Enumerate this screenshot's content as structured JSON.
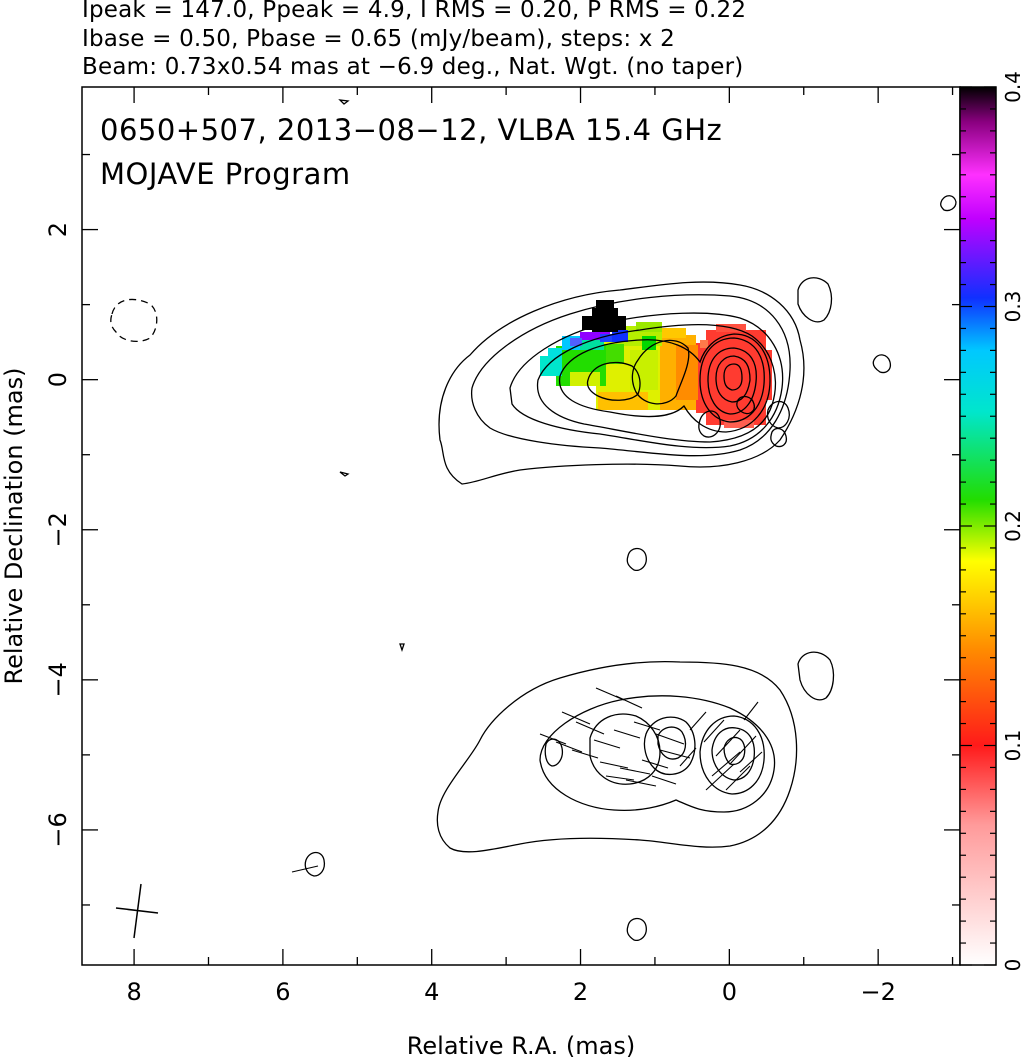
{
  "header": {
    "line1": "Ipeak = 147.0, Ppeak = 4.9, I RMS = 0.20, P RMS = 0.22",
    "line2": "Ibase = 0.50, Pbase = 0.65 (mJy/beam), steps: x 2",
    "line3": "Beam: 0.73x0.54 mas at −6.9 deg., Nat. Wgt. (no taper)"
  },
  "chart_data": {
    "type": "contour-map",
    "title": "0650+507, 2013−08−12, VLBA 15.4 GHz",
    "subtitle": "MOJAVE Program",
    "xlabel": "Relative R.A. (mas)",
    "ylabel": "Relative Declination (mas)",
    "xlim": [
      8.7,
      -3.1
    ],
    "ylim": [
      -7.8,
      3.9
    ],
    "x_ticks": [
      8,
      6,
      4,
      2,
      0,
      -2
    ],
    "x_tick_labels": [
      "8",
      "6",
      "4",
      "2",
      "0",
      "−2"
    ],
    "y_ticks": [
      2,
      0,
      -2,
      -4,
      -6
    ],
    "y_tick_labels": [
      "2",
      "0",
      "−2",
      "−4",
      "−6"
    ],
    "colorbar": {
      "min": 0,
      "max": 0.4,
      "ticks": [
        0,
        0.1,
        0.2,
        0.3,
        0.4
      ],
      "tick_labels": [
        "0",
        "0.1",
        "0.2",
        "0.3",
        "0.4"
      ]
    },
    "components": [
      {
        "name": "upper total-intensity map with fractional polarization color",
        "center_ra": 0.0,
        "center_dec": 0.0
      },
      {
        "name": "lower map with EVPA ticks",
        "center_ra": 0.0,
        "center_dec": -4.9
      }
    ]
  },
  "colors": {
    "frame": "#000000",
    "red": "#ff3b30",
    "orange": "#ff8c00",
    "yellow": "#ffe600",
    "green": "#00dd00",
    "cyan": "#00e0e0",
    "blue": "#2040ff",
    "violet": "#9000ff",
    "black": "#000000"
  }
}
